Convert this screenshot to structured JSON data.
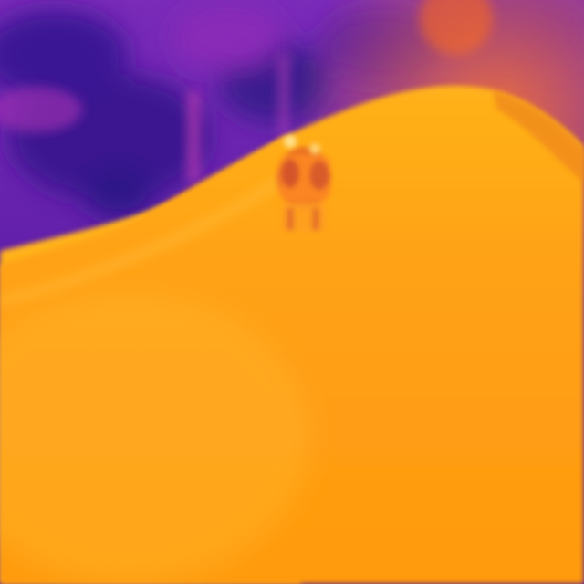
{
  "scene": {
    "palette": {
      "cold_deep": "#2a0f78",
      "cold": "#6a1ea8",
      "cool": "#9a2fc0",
      "warm_mid": "#e0484a",
      "hot": "#ff9a14",
      "hotter": "#ffb21a",
      "hottest": "#ffe08a"
    }
  }
}
